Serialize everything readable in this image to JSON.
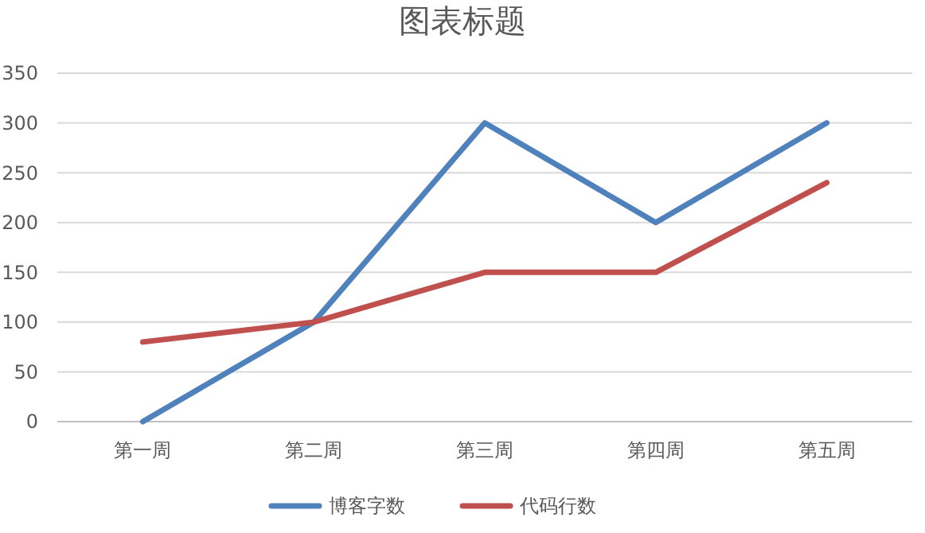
{
  "chart_data": {
    "type": "line",
    "title": "图表标题",
    "categories": [
      "第一周",
      "第二周",
      "第三周",
      "第四周",
      "第五周"
    ],
    "series": [
      {
        "name": "博客字数",
        "color": "#4f81bd",
        "values": [
          0,
          100,
          300,
          200,
          300
        ]
      },
      {
        "name": "代码行数",
        "color": "#c0504d",
        "values": [
          80,
          100,
          150,
          150,
          240
        ]
      }
    ],
    "ylim": [
      0,
      350
    ],
    "yticks": [
      0,
      50,
      100,
      150,
      200,
      250,
      300,
      350
    ],
    "grid": "y",
    "legend": "bottom",
    "marker": "none",
    "line_style": "solid"
  }
}
